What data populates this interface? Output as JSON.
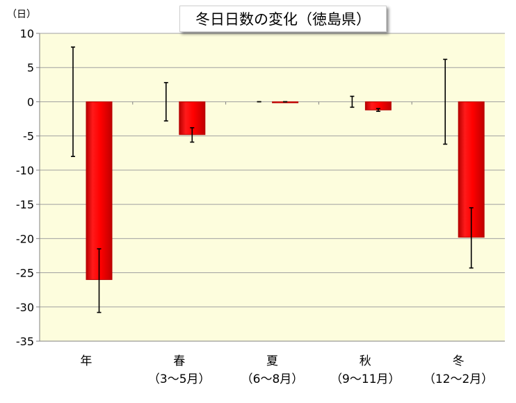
{
  "chart_data": {
    "type": "bar",
    "title": "冬日日数の変化（徳島県）",
    "ylabel": "（日）",
    "xlabel": "",
    "ylim": [
      -35,
      10
    ],
    "yticks": [
      10,
      5,
      0,
      -5,
      -10,
      -15,
      -20,
      -25,
      -30,
      -35
    ],
    "grid": true,
    "categories": [
      {
        "line1": "年",
        "line2": ""
      },
      {
        "line1": "春",
        "line2": "（3～5月）"
      },
      {
        "line1": "夏",
        "line2": "（6～8月）"
      },
      {
        "line1": "秋",
        "line2": "（9～11月）"
      },
      {
        "line1": "冬",
        "line2": "（12～2月）"
      }
    ],
    "variability_ranges": [
      {
        "low": -8.0,
        "high": 8.0
      },
      {
        "low": -2.8,
        "high": 2.8
      },
      {
        "low": 0,
        "high": 0
      },
      {
        "low": -0.8,
        "high": 0.8
      },
      {
        "low": -6.2,
        "high": 6.2
      }
    ],
    "values": [
      -26.0,
      -4.8,
      0,
      -1.2,
      -19.8
    ],
    "value_error_ranges": [
      {
        "low": -30.8,
        "high": -21.5
      },
      {
        "low": -5.9,
        "high": -3.8
      },
      {
        "low": 0,
        "high": 0
      },
      {
        "low": -1.4,
        "high": -1.0
      },
      {
        "low": -24.3,
        "high": -15.5
      }
    ],
    "colors": {
      "bar": "#ff0000",
      "bar_dark": "#b40000",
      "plot_bg": "#fdfddd",
      "grid": "#a0a0a0",
      "error": "#000000"
    }
  }
}
